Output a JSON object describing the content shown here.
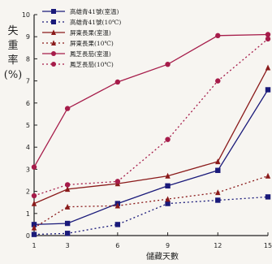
{
  "chart_data": {
    "type": "line",
    "ylabel": "失重率(%)",
    "xlabel": "儲藏天數",
    "x": [
      1,
      3,
      6,
      9,
      12,
      15
    ],
    "xlim": [
      1,
      15
    ],
    "ylim": [
      0,
      10
    ],
    "yticks": [
      0,
      1,
      2,
      3,
      4,
      5,
      6,
      7,
      8,
      9,
      10
    ],
    "grid": false,
    "legend_position": "top-left",
    "series": [
      {
        "name": "高雄青41號(室溫)",
        "values": [
          0.5,
          0.55,
          1.45,
          2.25,
          2.95,
          6.6
        ],
        "color": "#1a1a7a",
        "marker": "square",
        "dashed": false
      },
      {
        "name": "高雄青41號(10℃)",
        "values": [
          0.05,
          0.1,
          0.5,
          1.45,
          1.6,
          1.75
        ],
        "color": "#1a1a7a",
        "marker": "square",
        "dashed": true
      },
      {
        "name": "屏東長果(室溫)",
        "values": [
          1.45,
          2.1,
          2.35,
          2.7,
          3.35,
          7.6
        ],
        "color": "#8a1a1a",
        "marker": "triangle",
        "dashed": false
      },
      {
        "name": "屏東長果(10℃)",
        "values": [
          0.35,
          1.3,
          1.35,
          1.65,
          1.95,
          2.7
        ],
        "color": "#8a1a1a",
        "marker": "triangle",
        "dashed": true
      },
      {
        "name": "鳳芝長茄(室溫)",
        "values": [
          3.1,
          5.75,
          6.95,
          7.75,
          9.05,
          9.1
        ],
        "color": "#a61c4a",
        "marker": "circle",
        "dashed": false
      },
      {
        "name": "鳳芝長茄(10℃)",
        "values": [
          1.8,
          2.3,
          2.45,
          4.35,
          7.0,
          8.9
        ],
        "color": "#a61c4a",
        "marker": "circle",
        "dashed": true
      }
    ]
  }
}
